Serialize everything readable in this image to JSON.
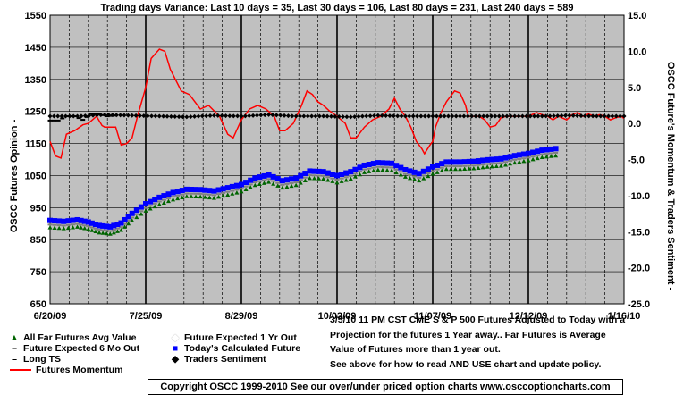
{
  "chart_data": {
    "type": "line",
    "title": "Trading days Variance:  Last 10 days = 35,  Last 30 days = 106,  Last 80 days = 231,  Last 240 days = 589",
    "ylabel_left": "OSCC Futures Opinion -",
    "ylabel_right": "OSCC Future's Momentum & Traders Sentiment -",
    "yleft_ticks": [
      "1550",
      "1450",
      "1350",
      "1250",
      "1150",
      "1050",
      "950",
      "850",
      "750",
      "650"
    ],
    "yright_ticks": [
      "15.0",
      "10.0",
      "5.0",
      "0.0",
      "-5.0",
      "-10.0",
      "-15.0",
      "-20.0",
      "-25.0"
    ],
    "ylim_left": [
      650,
      1550
    ],
    "ylim_right": [
      -25,
      15
    ],
    "x_tick_labels": [
      "6/20/09",
      "7/25/09",
      "8/29/09",
      "10/03/09",
      "11/07/09",
      "12/12/09",
      "1/16/10"
    ],
    "grid": true,
    "plot_background": "#c0c0c0",
    "series": [
      {
        "name": "All Far Futures Avg Value",
        "color": "#006400",
        "axis": "left",
        "marker": "triangle",
        "points": [
          [
            0,
            888
          ],
          [
            5,
            885
          ],
          [
            10,
            890
          ],
          [
            14,
            883
          ],
          [
            18,
            872
          ],
          [
            22,
            868
          ],
          [
            26,
            880
          ],
          [
            30,
            910
          ],
          [
            35,
            940
          ],
          [
            40,
            960
          ],
          [
            45,
            975
          ],
          [
            50,
            985
          ],
          [
            55,
            984
          ],
          [
            60,
            980
          ],
          [
            65,
            990
          ],
          [
            70,
            1000
          ],
          [
            75,
            1020
          ],
          [
            80,
            1030
          ],
          [
            85,
            1012
          ],
          [
            90,
            1020
          ],
          [
            95,
            1042
          ],
          [
            100,
            1040
          ],
          [
            105,
            1028
          ],
          [
            110,
            1040
          ],
          [
            115,
            1060
          ],
          [
            120,
            1068
          ],
          [
            125,
            1066
          ],
          [
            130,
            1046
          ],
          [
            135,
            1034
          ],
          [
            140,
            1055
          ],
          [
            145,
            1070
          ],
          [
            150,
            1070
          ],
          [
            155,
            1072
          ],
          [
            160,
            1077
          ],
          [
            165,
            1080
          ],
          [
            170,
            1090
          ],
          [
            175,
            1097
          ],
          [
            180,
            1107
          ],
          [
            185,
            1112
          ]
        ]
      },
      {
        "name": "Future Expected 6 Mo Out",
        "color": "#808080",
        "axis": "left",
        "marker": "dash",
        "points": [
          [
            0,
            897
          ],
          [
            5,
            894
          ],
          [
            10,
            899
          ],
          [
            14,
            892
          ],
          [
            18,
            881
          ],
          [
            22,
            877
          ],
          [
            26,
            889
          ],
          [
            30,
            919
          ],
          [
            35,
            949
          ],
          [
            40,
            969
          ],
          [
            45,
            984
          ],
          [
            50,
            994
          ],
          [
            55,
            993
          ],
          [
            60,
            989
          ],
          [
            65,
            999
          ],
          [
            70,
            1009
          ],
          [
            75,
            1029
          ],
          [
            80,
            1039
          ],
          [
            85,
            1021
          ],
          [
            90,
            1029
          ],
          [
            95,
            1051
          ],
          [
            100,
            1049
          ],
          [
            105,
            1037
          ],
          [
            110,
            1049
          ],
          [
            115,
            1069
          ],
          [
            120,
            1077
          ],
          [
            125,
            1075
          ],
          [
            130,
            1055
          ],
          [
            135,
            1043
          ],
          [
            140,
            1064
          ],
          [
            145,
            1079
          ],
          [
            150,
            1079
          ],
          [
            155,
            1081
          ],
          [
            160,
            1086
          ],
          [
            165,
            1089
          ],
          [
            170,
            1099
          ],
          [
            175,
            1106
          ],
          [
            180,
            1116
          ],
          [
            185,
            1121
          ]
        ]
      },
      {
        "name": "Long TS",
        "color": "#000000",
        "axis": "right",
        "marker": "dash",
        "points": [
          [
            0,
            0.4
          ],
          [
            3,
            0.4
          ],
          [
            6,
            1.0
          ],
          [
            9,
            1.0
          ],
          [
            12,
            0.5
          ],
          [
            15,
            1.3
          ],
          [
            18,
            1.3
          ],
          [
            21,
            1.0
          ],
          [
            24,
            1.1
          ]
        ]
      },
      {
        "name": "Futures Momentum",
        "color": "#ff0000",
        "axis": "right",
        "marker": "none",
        "points": [
          [
            0,
            -2.5
          ],
          [
            2,
            -4.5
          ],
          [
            4,
            -4.8
          ],
          [
            6,
            -1.5
          ],
          [
            9,
            -1.0
          ],
          [
            12,
            -0.2
          ],
          [
            14,
            0.0
          ],
          [
            17,
            1.0
          ],
          [
            19,
            -0.3
          ],
          [
            20,
            -0.5
          ],
          [
            24,
            -0.5
          ],
          [
            26,
            -3.0
          ],
          [
            28,
            -2.8
          ],
          [
            30,
            -2.0
          ],
          [
            32,
            1.0
          ],
          [
            35,
            5.0
          ],
          [
            37,
            9.0
          ],
          [
            40,
            10.3
          ],
          [
            42,
            10.0
          ],
          [
            44,
            7.5
          ],
          [
            46,
            6.0
          ],
          [
            48,
            4.5
          ],
          [
            51,
            4.0
          ],
          [
            53,
            3.0
          ],
          [
            55,
            2.0
          ],
          [
            58,
            2.5
          ],
          [
            62,
            1.0
          ],
          [
            65,
            -1.5
          ],
          [
            67,
            -2.0
          ],
          [
            70,
            0.5
          ],
          [
            73,
            2.0
          ],
          [
            76,
            2.5
          ],
          [
            79,
            2.0
          ],
          [
            82,
            1.0
          ],
          [
            84,
            -1.0
          ],
          [
            86,
            -1.0
          ],
          [
            89,
            0.0
          ],
          [
            92,
            2.5
          ],
          [
            94,
            4.5
          ],
          [
            96,
            4.0
          ],
          [
            98,
            3.0
          ],
          [
            100,
            2.5
          ],
          [
            102,
            1.8
          ],
          [
            105,
            1.0
          ],
          [
            108,
            0.0
          ],
          [
            110,
            -2.0
          ],
          [
            112,
            -2.0
          ],
          [
            115,
            -0.5
          ],
          [
            118,
            0.5
          ],
          [
            121,
            1.0
          ],
          [
            124,
            2.0
          ],
          [
            126,
            3.5
          ],
          [
            128,
            2.0
          ],
          [
            130,
            1.0
          ],
          [
            132,
            -0.5
          ],
          [
            134,
            -2.5
          ],
          [
            136,
            -3.5
          ],
          [
            137,
            -4.2
          ],
          [
            139,
            -3.0
          ],
          [
            140,
            -2.5
          ],
          [
            141,
            -0.5
          ],
          [
            143,
            1.5
          ],
          [
            145,
            3.0
          ],
          [
            147,
            4.0
          ],
          [
            148,
            4.5
          ],
          [
            150,
            4.2
          ],
          [
            152,
            2.5
          ],
          [
            153,
            1.0
          ],
          [
            155,
            1.0
          ],
          [
            157,
            1.0
          ],
          [
            159,
            0.5
          ],
          [
            161,
            -0.5
          ],
          [
            163,
            -0.3
          ],
          [
            165,
            0.8
          ],
          [
            167,
            1.0
          ],
          [
            169,
            1.0
          ],
          [
            172,
            1.0
          ],
          [
            175,
            1.0
          ],
          [
            178,
            1.5
          ],
          [
            180,
            1.2
          ],
          [
            182,
            1.0
          ],
          [
            184,
            0.5
          ],
          [
            186,
            1.0
          ],
          [
            189,
            0.5
          ],
          [
            191,
            1.2
          ],
          [
            193,
            1.5
          ],
          [
            195,
            1.0
          ],
          [
            197,
            1.3
          ],
          [
            199,
            1.0
          ],
          [
            201,
            1.2
          ],
          [
            203,
            1.0
          ],
          [
            205,
            0.5
          ],
          [
            207,
            0.8
          ],
          [
            209,
            1.0
          ],
          [
            210,
            0.7
          ]
        ]
      },
      {
        "name": "Today's Calculated Future",
        "color": "#0000ff",
        "axis": "left",
        "marker": "square",
        "points": [
          [
            0,
            910
          ],
          [
            5,
            907
          ],
          [
            10,
            912
          ],
          [
            14,
            905
          ],
          [
            18,
            894
          ],
          [
            22,
            890
          ],
          [
            26,
            902
          ],
          [
            30,
            932
          ],
          [
            35,
            962
          ],
          [
            40,
            982
          ],
          [
            45,
            997
          ],
          [
            50,
            1007
          ],
          [
            55,
            1006
          ],
          [
            60,
            1002
          ],
          [
            65,
            1012
          ],
          [
            70,
            1022
          ],
          [
            75,
            1042
          ],
          [
            80,
            1052
          ],
          [
            85,
            1034
          ],
          [
            90,
            1042
          ],
          [
            95,
            1064
          ],
          [
            100,
            1062
          ],
          [
            105,
            1050
          ],
          [
            110,
            1062
          ],
          [
            115,
            1082
          ],
          [
            120,
            1090
          ],
          [
            125,
            1088
          ],
          [
            130,
            1068
          ],
          [
            135,
            1056
          ],
          [
            140,
            1077
          ],
          [
            145,
            1092
          ],
          [
            150,
            1092
          ],
          [
            155,
            1094
          ],
          [
            160,
            1099
          ],
          [
            165,
            1102
          ],
          [
            170,
            1112
          ],
          [
            175,
            1119
          ],
          [
            180,
            1129
          ],
          [
            185,
            1134
          ]
        ]
      },
      {
        "name": "Traders Sentiment",
        "color": "#000000",
        "axis": "right",
        "marker": "diamond",
        "points": [
          [
            0,
            1.0
          ],
          [
            10,
            1.0
          ],
          [
            20,
            1.2
          ],
          [
            30,
            1.1
          ],
          [
            40,
            1.0
          ],
          [
            50,
            0.9
          ],
          [
            60,
            1.1
          ],
          [
            70,
            1.0
          ],
          [
            80,
            1.2
          ],
          [
            90,
            1.0
          ],
          [
            100,
            1.0
          ],
          [
            110,
            0.9
          ],
          [
            120,
            1.1
          ],
          [
            130,
            1.0
          ],
          [
            140,
            1.0
          ],
          [
            150,
            1.0
          ],
          [
            160,
            1.0
          ],
          [
            170,
            1.0
          ],
          [
            180,
            1.0
          ],
          [
            190,
            1.1
          ],
          [
            200,
            1.0
          ],
          [
            210,
            1.0
          ]
        ]
      }
    ],
    "legend_entries": [
      {
        "label": "All Far Futures Avg Value",
        "symbol": "▲",
        "color": "#006400"
      },
      {
        "label": "Future Expected 6 Mo Out",
        "symbol": "–",
        "color": "#808080"
      },
      {
        "label": "Long TS",
        "symbol": "–",
        "color": "#000000"
      },
      {
        "label": "Futures Momentum",
        "symbol": "line",
        "color": "#ff0000"
      },
      {
        "label": "Future Expected 1 Yr Out",
        "symbol": "◆",
        "color": "#ffffff"
      },
      {
        "label": "Today's Calculated Future",
        "symbol": "■",
        "color": "#0000ff"
      },
      {
        "label": "Traders Sentiment",
        "symbol": "◆",
        "color": "#000000"
      }
    ],
    "note_lines": [
      "3/5/10 11 PM CST CME S & P 500  Futures Adjusted to Today with a",
      "Projection for the futures 1 Year away..  Far Futures is Average",
      "Value of Futures more than 1 year out.",
      "See above for how to read AND USE chart and update policy."
    ],
    "copyright": "Copyright OSCC 1999-2010 See our over/under priced option charts www.osccoptioncharts.com"
  }
}
